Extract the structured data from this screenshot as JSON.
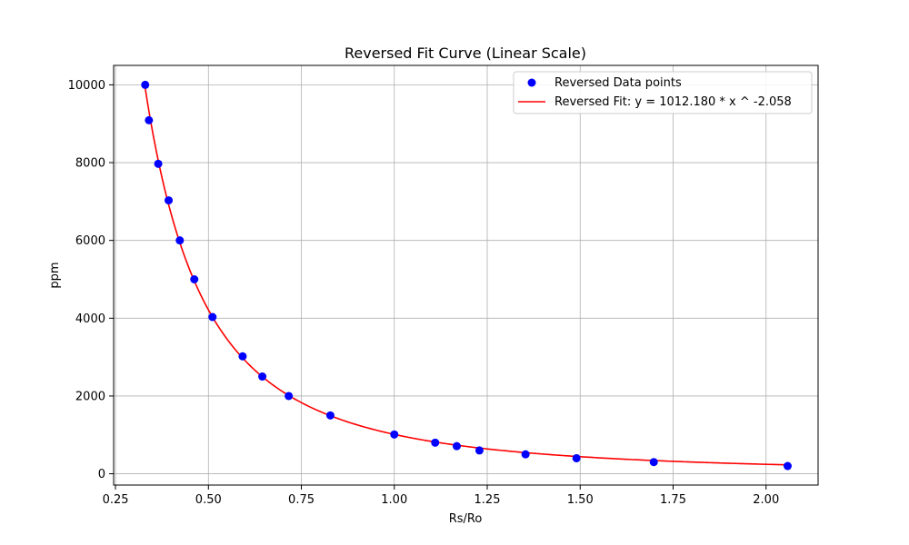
{
  "chart_data": {
    "type": "scatter",
    "title": "Reversed Fit Curve (Linear Scale)",
    "xlabel": "Rs/Ro",
    "ylabel": "ppm",
    "xlim": [
      0.245,
      2.14
    ],
    "ylim": [
      -290,
      10500
    ],
    "xticks": [
      0.25,
      0.5,
      0.75,
      1.0,
      1.25,
      1.5,
      1.75,
      2.0
    ],
    "xtick_labels": [
      "0.25",
      "0.50",
      "0.75",
      "1.00",
      "1.25",
      "1.50",
      "1.75",
      "2.00"
    ],
    "yticks": [
      0,
      2000,
      4000,
      6000,
      8000,
      10000
    ],
    "ytick_labels": [
      "0",
      "2000",
      "4000",
      "6000",
      "8000",
      "10000"
    ],
    "grid": true,
    "legend_position": "top-right",
    "series": [
      {
        "name": "Reversed Data points",
        "kind": "scatter",
        "color": "#0000ff",
        "x": [
          0.33,
          0.34,
          0.365,
          0.393,
          0.423,
          0.462,
          0.511,
          0.592,
          0.645,
          0.716,
          0.828,
          1.0,
          1.11,
          1.168,
          1.229,
          1.353,
          1.49,
          1.698,
          2.058
        ],
        "y": [
          10000,
          9090,
          7970,
          7030,
          6000,
          5000,
          4030,
          3020,
          2500,
          2000,
          1500,
          1010,
          800,
          710,
          600,
          500,
          400,
          300,
          200
        ]
      },
      {
        "name": "Reversed Fit: y = 1012.180 * x ^ -2.058",
        "kind": "line",
        "color": "#ff0000",
        "coefficient": 1012.18,
        "exponent": -2.058,
        "x_range": [
          0.33,
          2.058
        ]
      }
    ]
  }
}
